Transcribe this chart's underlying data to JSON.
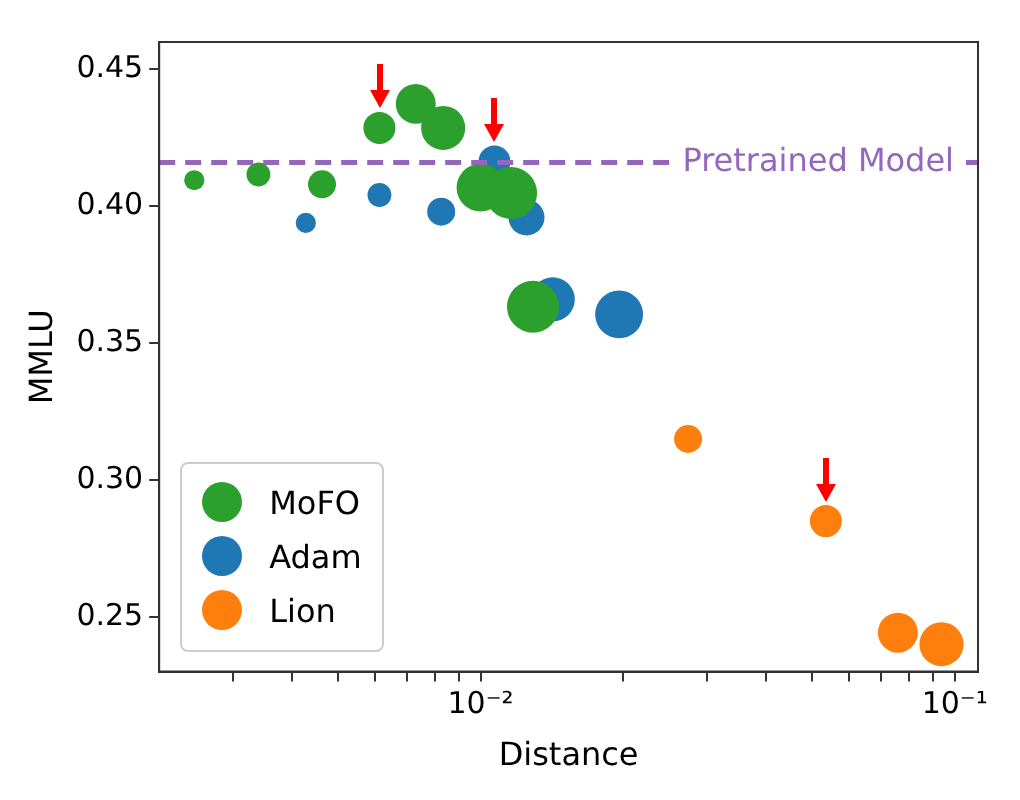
{
  "chart_data": {
    "type": "bubble",
    "xlabel": "Distance",
    "ylabel": "MMLU",
    "log": "x",
    "xlim": [
      0.0021,
      0.112
    ],
    "ylim": [
      0.23,
      0.46
    ],
    "xticks": [
      {
        "value": 0.003,
        "label": null
      },
      {
        "value": 0.004,
        "label": null
      },
      {
        "value": 0.005,
        "label": null
      },
      {
        "value": 0.006,
        "label": null
      },
      {
        "value": 0.007,
        "label": null
      },
      {
        "value": 0.008,
        "label": null
      },
      {
        "value": 0.009,
        "label": null
      },
      {
        "value": 0.01,
        "label": "10⁻²"
      },
      {
        "value": 0.02,
        "label": null
      },
      {
        "value": 0.03,
        "label": null
      },
      {
        "value": 0.04,
        "label": null
      },
      {
        "value": 0.05,
        "label": null
      },
      {
        "value": 0.06,
        "label": null
      },
      {
        "value": 0.07,
        "label": null
      },
      {
        "value": 0.08,
        "label": null
      },
      {
        "value": 0.09,
        "label": null
      },
      {
        "value": 0.1,
        "label": "10⁻¹"
      }
    ],
    "yticks": [
      {
        "value": 0.25,
        "label": "0.25"
      },
      {
        "value": 0.3,
        "label": "0.30"
      },
      {
        "value": 0.35,
        "label": "0.35"
      },
      {
        "value": 0.4,
        "label": "0.40"
      },
      {
        "value": 0.45,
        "label": "0.45"
      }
    ],
    "grid": false,
    "legend": "bottom left",
    "marker": "circle",
    "ref_lines": [
      {
        "axis": "y",
        "value": 0.416,
        "label": "Pretrained Model",
        "color": "#9467bd",
        "line_style": "dashed"
      }
    ],
    "series": [
      {
        "name": "MoFO",
        "color": "#2ca02c",
        "x": [
          0.00249,
          0.0034,
          0.00463,
          0.00612,
          0.0073,
          0.00834,
          0.01,
          0.0116,
          0.0129
        ],
        "values": [
          0.4095,
          0.4116,
          0.408,
          0.4286,
          0.4374,
          0.4286,
          0.4068,
          0.4048,
          0.3633
        ],
        "sizes": [
          0.15,
          0.21,
          0.29,
          0.38,
          0.59,
          0.72,
          0.85,
          1,
          1
        ]
      },
      {
        "name": "Adam",
        "color": "#1f77b4",
        "x": [
          0.00428,
          0.00612,
          0.00826,
          0.0107,
          0.0125,
          0.0142,
          0.0196
        ],
        "values": [
          0.3939,
          0.4041,
          0.398,
          0.4163,
          0.3959,
          0.366,
          0.3605
        ],
        "sizes": [
          0.15,
          0.21,
          0.29,
          0.38,
          0.48,
          0.72,
          0.85
        ]
      },
      {
        "name": "Lion",
        "color": "#ff7f0e",
        "x": [
          0.0274,
          0.0535,
          0.0759,
          0.0938
        ],
        "values": [
          0.315,
          0.285,
          0.2442,
          0.24
        ],
        "sizes": [
          0.29,
          0.38,
          0.59,
          0.72
        ]
      }
    ]
  }
}
